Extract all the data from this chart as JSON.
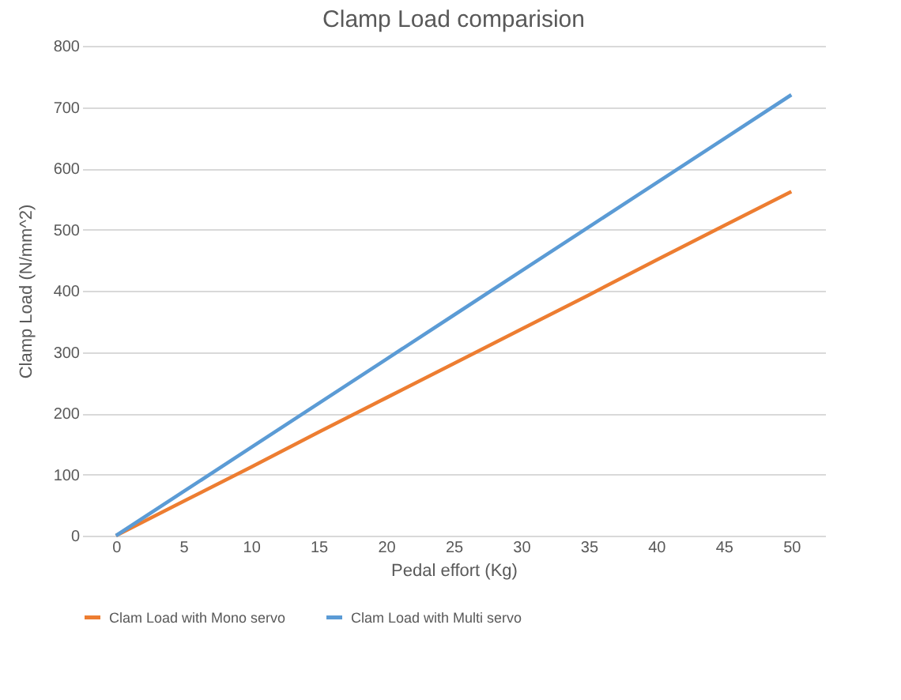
{
  "chart_data": {
    "type": "line",
    "title": "Clamp Load comparision",
    "xlabel": "Pedal effort (Kg)",
    "ylabel": "Clamp Load (N/mm^2)",
    "categories": [
      "0",
      "5",
      "10",
      "15",
      "20",
      "25",
      "30",
      "35",
      "40",
      "45",
      "50"
    ],
    "series": [
      {
        "name": "Clam Load with Mono servo",
        "color": "#ed7d31",
        "values": [
          0,
          56,
          112,
          169,
          225,
          281,
          337,
          393,
          450,
          506,
          562
        ]
      },
      {
        "name": "Clam Load with Multi servo",
        "color": "#5b9bd5",
        "values": [
          0,
          72,
          144,
          216,
          288,
          360,
          432,
          504,
          576,
          648,
          720
        ]
      }
    ],
    "ylim": [
      0,
      800
    ],
    "yticks": [
      0,
      100,
      200,
      300,
      400,
      500,
      600,
      700,
      800
    ],
    "grid": "y",
    "legend": "bottom",
    "marker": "none",
    "line_style": "solid"
  }
}
